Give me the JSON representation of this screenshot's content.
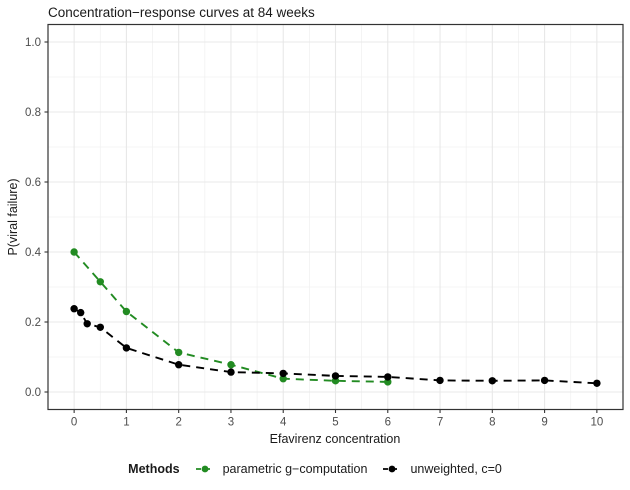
{
  "chart_data": {
    "type": "line",
    "title": "Concentration−response curves at 84 weeks",
    "xlabel": "Efavirenz concentration",
    "ylabel": "P(viral failure)",
    "xlim": [
      -0.5,
      10.5
    ],
    "ylim": [
      -0.05,
      1.05
    ],
    "x_ticks": [
      0,
      1,
      2,
      3,
      4,
      5,
      6,
      7,
      8,
      9,
      10
    ],
    "x_tick_labels": [
      "0",
      "1",
      "2",
      "3",
      "4",
      "5",
      "6",
      "7",
      "8",
      "9",
      "10"
    ],
    "y_ticks": [
      0.0,
      0.2,
      0.4,
      0.6,
      0.8,
      1.0
    ],
    "y_tick_labels": [
      "0.0",
      "0.2",
      "0.4",
      "0.6",
      "0.8",
      "1.0"
    ],
    "x_minor_ticks": [
      0.5,
      1.5,
      2.5,
      3.5,
      4.5,
      5.5,
      6.5,
      7.5,
      8.5,
      9.5
    ],
    "y_minor_ticks": [
      0.1,
      0.3,
      0.5,
      0.7,
      0.9
    ],
    "grid": "major+minor",
    "legend_position": "bottom",
    "legend_title": "Methods",
    "colors": {
      "grid_major": "#e8e8e8",
      "grid_minor": "#f0f0f0",
      "panel_border": "#333333",
      "tick_mark": "#333333",
      "tick_text": "#4d4d4d"
    },
    "series": [
      {
        "name": "parametric g−computation",
        "color": "#228B22",
        "linestyle": "dashed",
        "marker": "circle",
        "points": [
          [
            0,
            0.4
          ],
          [
            0.5,
            0.315
          ],
          [
            1,
            0.23
          ],
          [
            2,
            0.113
          ],
          [
            3,
            0.078
          ],
          [
            4,
            0.038
          ],
          [
            5,
            0.032
          ],
          [
            6,
            0.029
          ]
        ]
      },
      {
        "name": "unweighted, c=0",
        "color": "#000000",
        "linestyle": "dashed",
        "marker": "circle",
        "points": [
          [
            0,
            0.238
          ],
          [
            0.125,
            0.227
          ],
          [
            0.25,
            0.195
          ],
          [
            0.5,
            0.185
          ],
          [
            1,
            0.126
          ],
          [
            2,
            0.078
          ],
          [
            3,
            0.057
          ],
          [
            4,
            0.053
          ],
          [
            5,
            0.046
          ],
          [
            6,
            0.043
          ],
          [
            7,
            0.033
          ],
          [
            8,
            0.032
          ],
          [
            9,
            0.033
          ],
          [
            10,
            0.025
          ]
        ]
      }
    ]
  }
}
